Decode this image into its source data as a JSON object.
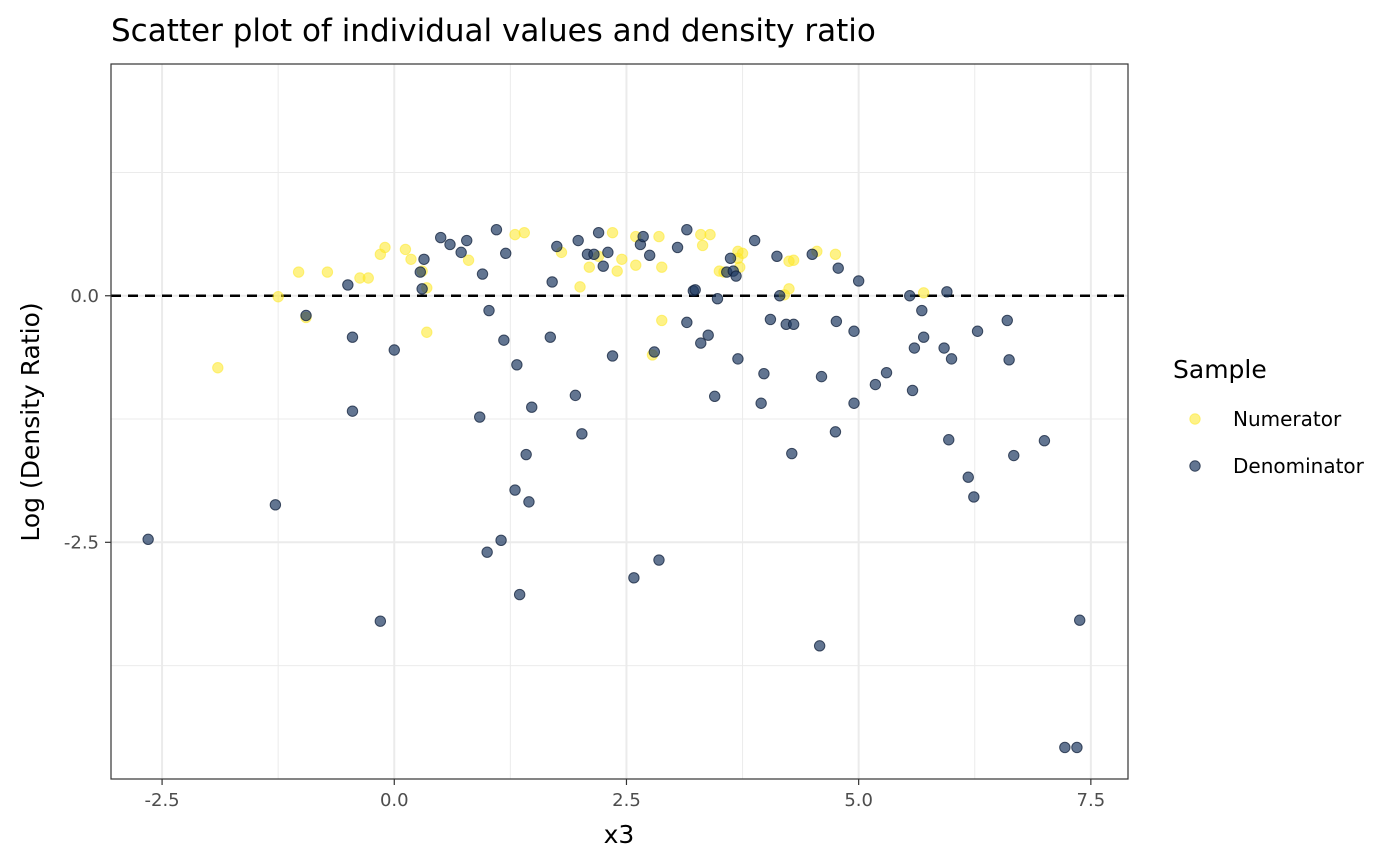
{
  "chart_data": {
    "type": "scatter",
    "title": "Scatter plot of individual values and density ratio",
    "xlabel": "x3",
    "ylabel": "Log (Density Ratio)",
    "xlim": [
      -3.05,
      7.9
    ],
    "ylim": [
      -4.9,
      2.35
    ],
    "xticks": [
      -2.5,
      0.0,
      2.5,
      5.0,
      7.5
    ],
    "xtick_labels": [
      "-2.5",
      "0.0",
      "2.5",
      "5.0",
      "7.5"
    ],
    "yticks": [
      -2.5,
      0.0
    ],
    "ytick_labels": [
      "-2.5",
      "0.0"
    ],
    "x_minor_gridlines": [
      -1.25,
      1.25,
      3.75,
      6.25
    ],
    "y_minor_gridlines": [
      -3.75,
      -1.25,
      1.25
    ],
    "reference_line": {
      "y": 0,
      "style": "dashed",
      "color": "#000000"
    },
    "grid": true,
    "legend": {
      "title": "Sample",
      "placement": "right",
      "entries": [
        {
          "label": "Numerator",
          "color": "#fde725"
        },
        {
          "label": "Denominator",
          "color": "#1f3b63"
        }
      ]
    },
    "series": [
      {
        "name": "Numerator",
        "color": "#fde725",
        "points": [
          [
            -1.9,
            -0.73
          ],
          [
            -1.25,
            -0.01
          ],
          [
            -0.95,
            -0.22
          ],
          [
            -1.03,
            0.24
          ],
          [
            -0.72,
            0.24
          ],
          [
            -0.37,
            0.18
          ],
          [
            -0.28,
            0.18
          ],
          [
            -0.15,
            0.42
          ],
          [
            -0.1,
            0.49
          ],
          [
            0.12,
            0.47
          ],
          [
            0.18,
            0.37
          ],
          [
            0.3,
            0.25
          ],
          [
            0.35,
            0.08
          ],
          [
            0.35,
            -0.37
          ],
          [
            0.8,
            0.36
          ],
          [
            1.3,
            0.62
          ],
          [
            1.4,
            0.64
          ],
          [
            1.8,
            0.44
          ],
          [
            2.0,
            0.09
          ],
          [
            2.1,
            0.29
          ],
          [
            2.2,
            0.4
          ],
          [
            2.35,
            0.64
          ],
          [
            2.4,
            0.25
          ],
          [
            2.45,
            0.37
          ],
          [
            2.6,
            0.6
          ],
          [
            2.6,
            0.31
          ],
          [
            2.78,
            -0.6
          ],
          [
            2.85,
            0.6
          ],
          [
            2.88,
            -0.25
          ],
          [
            2.88,
            0.29
          ],
          [
            3.3,
            0.62
          ],
          [
            3.32,
            0.51
          ],
          [
            3.4,
            0.62
          ],
          [
            3.5,
            0.25
          ],
          [
            3.55,
            0.24
          ],
          [
            3.7,
            0.45
          ],
          [
            3.7,
            0.38
          ],
          [
            3.72,
            0.29
          ],
          [
            3.75,
            0.43
          ],
          [
            4.2,
            0.01
          ],
          [
            4.25,
            0.07
          ],
          [
            4.25,
            0.35
          ],
          [
            4.3,
            0.36
          ],
          [
            4.55,
            0.45
          ],
          [
            4.75,
            0.42
          ],
          [
            5.7,
            0.03
          ]
        ]
      },
      {
        "name": "Denominator",
        "color": "#1f3b63",
        "points": [
          [
            -2.65,
            -2.47
          ],
          [
            -1.28,
            -2.12
          ],
          [
            -0.95,
            -0.2
          ],
          [
            -0.5,
            0.11
          ],
          [
            -0.45,
            -0.42
          ],
          [
            -0.45,
            -1.17
          ],
          [
            -0.15,
            -3.3
          ],
          [
            0.0,
            -0.55
          ],
          [
            0.28,
            0.24
          ],
          [
            0.3,
            0.07
          ],
          [
            0.32,
            0.37
          ],
          [
            0.5,
            0.59
          ],
          [
            0.6,
            0.52
          ],
          [
            0.72,
            0.44
          ],
          [
            0.78,
            0.56
          ],
          [
            0.92,
            -1.23
          ],
          [
            0.95,
            0.22
          ],
          [
            1.0,
            -2.6
          ],
          [
            1.02,
            -0.15
          ],
          [
            1.1,
            0.67
          ],
          [
            1.15,
            -2.48
          ],
          [
            1.18,
            -0.45
          ],
          [
            1.2,
            0.43
          ],
          [
            1.3,
            -1.97
          ],
          [
            1.32,
            -0.7
          ],
          [
            1.35,
            -3.03
          ],
          [
            1.42,
            -1.61
          ],
          [
            1.45,
            -2.09
          ],
          [
            1.48,
            -1.13
          ],
          [
            1.68,
            -0.42
          ],
          [
            1.7,
            0.14
          ],
          [
            1.75,
            0.5
          ],
          [
            1.95,
            -1.01
          ],
          [
            1.98,
            0.56
          ],
          [
            2.02,
            -1.4
          ],
          [
            2.08,
            0.42
          ],
          [
            2.15,
            0.42
          ],
          [
            2.2,
            0.64
          ],
          [
            2.25,
            0.3
          ],
          [
            2.3,
            0.44
          ],
          [
            2.35,
            -0.61
          ],
          [
            2.58,
            -2.86
          ],
          [
            2.65,
            0.52
          ],
          [
            2.68,
            0.6
          ],
          [
            2.75,
            0.41
          ],
          [
            2.8,
            -0.57
          ],
          [
            2.85,
            -2.68
          ],
          [
            3.05,
            0.49
          ],
          [
            3.15,
            -0.27
          ],
          [
            3.15,
            0.67
          ],
          [
            3.22,
            0.05
          ],
          [
            3.24,
            0.06
          ],
          [
            3.3,
            -0.48
          ],
          [
            3.38,
            -0.4
          ],
          [
            3.45,
            -1.02
          ],
          [
            3.48,
            -0.03
          ],
          [
            3.58,
            0.24
          ],
          [
            3.62,
            0.38
          ],
          [
            3.65,
            0.25
          ],
          [
            3.68,
            0.2
          ],
          [
            3.7,
            -0.64
          ],
          [
            3.88,
            0.56
          ],
          [
            3.95,
            -1.09
          ],
          [
            3.98,
            -0.79
          ],
          [
            4.05,
            -0.24
          ],
          [
            4.12,
            0.4
          ],
          [
            4.15,
            0.0
          ],
          [
            4.22,
            -0.29
          ],
          [
            4.28,
            -1.6
          ],
          [
            4.3,
            -0.29
          ],
          [
            4.5,
            0.42
          ],
          [
            4.58,
            -3.55
          ],
          [
            4.6,
            -0.82
          ],
          [
            4.75,
            -1.38
          ],
          [
            4.76,
            -0.26
          ],
          [
            4.78,
            0.28
          ],
          [
            4.95,
            -1.09
          ],
          [
            4.95,
            -0.36
          ],
          [
            5.0,
            0.15
          ],
          [
            5.18,
            -0.9
          ],
          [
            5.3,
            -0.78
          ],
          [
            5.55,
            0.0
          ],
          [
            5.58,
            -0.96
          ],
          [
            5.6,
            -0.53
          ],
          [
            5.68,
            -0.15
          ],
          [
            5.7,
            -0.42
          ],
          [
            5.92,
            -0.53
          ],
          [
            5.95,
            0.04
          ],
          [
            5.97,
            -1.46
          ],
          [
            6.0,
            -0.64
          ],
          [
            6.18,
            -1.84
          ],
          [
            6.24,
            -2.04
          ],
          [
            6.28,
            -0.36
          ],
          [
            6.6,
            -0.25
          ],
          [
            6.62,
            -0.65
          ],
          [
            6.67,
            -1.62
          ],
          [
            7.0,
            -1.47
          ],
          [
            7.22,
            -4.58
          ],
          [
            7.35,
            -4.58
          ],
          [
            7.38,
            -3.29
          ]
        ]
      }
    ]
  }
}
